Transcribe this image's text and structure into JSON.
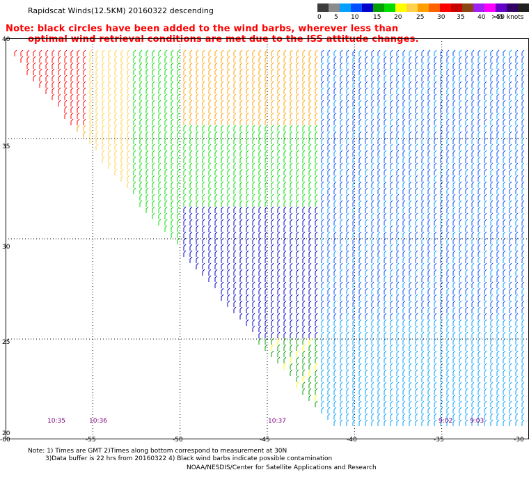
{
  "header": {
    "title": "Rapidscat Winds(12.5KM) 20160322 descending",
    "note_line1": "Note: black circles have been added to the wind barbs, wherever less than",
    "note_line2": "optimal wind retrieval conditions are met due to the ISS attitude changes."
  },
  "colorbar": {
    "colors": [
      "#3c3c3c",
      "#8c8c8c",
      "#00a0ff",
      "#0050ff",
      "#0000c8",
      "#00a000",
      "#00dc00",
      "#ffff00",
      "#ffd24a",
      "#ffa000",
      "#ff6000",
      "#ff0000",
      "#c80000",
      "#8b4513",
      "#a020f0",
      "#ff00ff",
      "#6400c8",
      "#320064",
      "#202020"
    ],
    "labels": [
      "0",
      "5",
      "10",
      "15",
      "20",
      "25",
      "30",
      "35",
      "40",
      "45",
      ">50 knots"
    ],
    "speeds": [
      0,
      5,
      10,
      15,
      20,
      25,
      30,
      35,
      40,
      45,
      50
    ]
  },
  "map": {
    "lat_labels": [
      "40",
      "35",
      "30",
      "25",
      "20"
    ],
    "lon_labels": [
      "-60",
      "-55",
      "-50",
      "-45",
      "-40",
      "-35",
      "-30"
    ],
    "time_labels": [
      "10:35",
      "10:36",
      "10:37",
      "9:02",
      "9:03"
    ],
    "lat_range": [
      20,
      40
    ],
    "lon_range": [
      -60,
      -30
    ],
    "grid_step_deg": 5
  },
  "footer": {
    "line1": "Note: 1) Times are GMT 2)Times along bottom correspond to measurement at 30N",
    "line2": "3)Data buffer is 22 hrs from 20160322 4) Black wind barbs indicate possible contamination",
    "line3": "NOAA/NESDIS/Center for Satellite Applications and Research"
  }
}
